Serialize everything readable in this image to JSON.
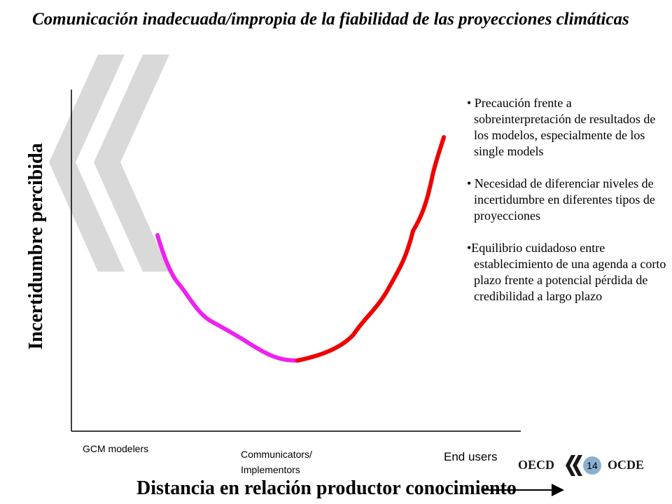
{
  "slide": {
    "title": "Comunicación inadecuada/impropia de la fiabilidad de las proyecciones climáticas",
    "page_number": "14"
  },
  "diagram": {
    "y_axis_label": "Incertidumbre percibida",
    "x_axis_label": "Distancia en relación productor conocimiento",
    "x_ticks": [
      "GCM modelers",
      "Communicators/ Implementors",
      "End users"
    ],
    "curve_colors": {
      "left_segment": "#ee22ee",
      "right_segment": "#ee0000"
    }
  },
  "notes": [
    "• Precaución frente a sobreinterpretación de resultados de los modelos, especialmente de los single models",
    "• Necesidad de diferenciar niveles de incertidumbre en diferentes tipos de proyecciones",
    "•Equilibrio cuidadoso entre establecimiento de una agenda a corto plazo frente a potencial pérdida de credibilidad a largo plazo"
  ],
  "logo": {
    "left_text": "OECD",
    "right_text": "OCDE"
  }
}
